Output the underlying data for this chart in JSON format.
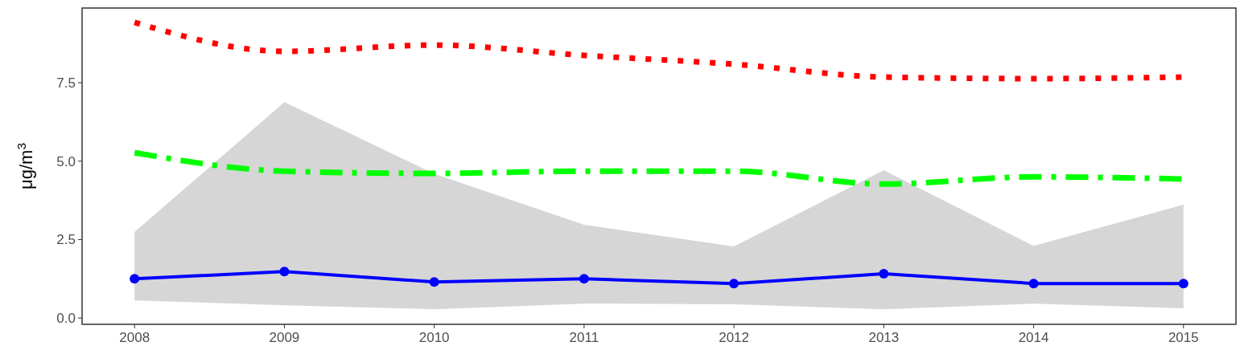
{
  "chart_data": {
    "type": "line",
    "ylabel": "μg/m$^{3}$",
    "x": [
      2008,
      2009,
      2010,
      2011,
      2012,
      2013,
      2014,
      2015
    ],
    "xlim": [
      2007.65,
      2015.35
    ],
    "xticks": [
      2008,
      2009,
      2010,
      2011,
      2012,
      2013,
      2014,
      2015
    ],
    "ylim": [
      -0.2,
      9.88
    ],
    "yticks": [
      {
        "value": 0,
        "label": "0.0"
      },
      {
        "value": 2.5,
        "label": "2.5"
      },
      {
        "value": 5,
        "label": "5.0"
      },
      {
        "value": 7.5,
        "label": "7.5"
      }
    ],
    "grid": false,
    "series": [
      {
        "color": "#ff0000",
        "line_style": "dotted",
        "marker": "none",
        "values": [
          9.42,
          8.5,
          8.7,
          8.37,
          8.09,
          7.68,
          7.63,
          7.68
        ]
      },
      {
        "color": "#00ff00",
        "line_style": "dashed",
        "marker": "none",
        "values": [
          5.27,
          4.68,
          4.61,
          4.68,
          4.68,
          4.27,
          4.5,
          4.43
        ]
      },
      {
        "color": "#0000ff",
        "line_style": "solid",
        "marker": "circle",
        "values": [
          1.25,
          1.48,
          1.15,
          1.25,
          1.1,
          1.41,
          1.1,
          1.1
        ],
        "lower": [
          0.56,
          0.41,
          0.28,
          0.46,
          0.44,
          0.28,
          0.46,
          0.31
        ],
        "upper": [
          2.74,
          6.88,
          4.6,
          2.97,
          2.28,
          4.71,
          2.3,
          3.61
        ]
      }
    ]
  }
}
